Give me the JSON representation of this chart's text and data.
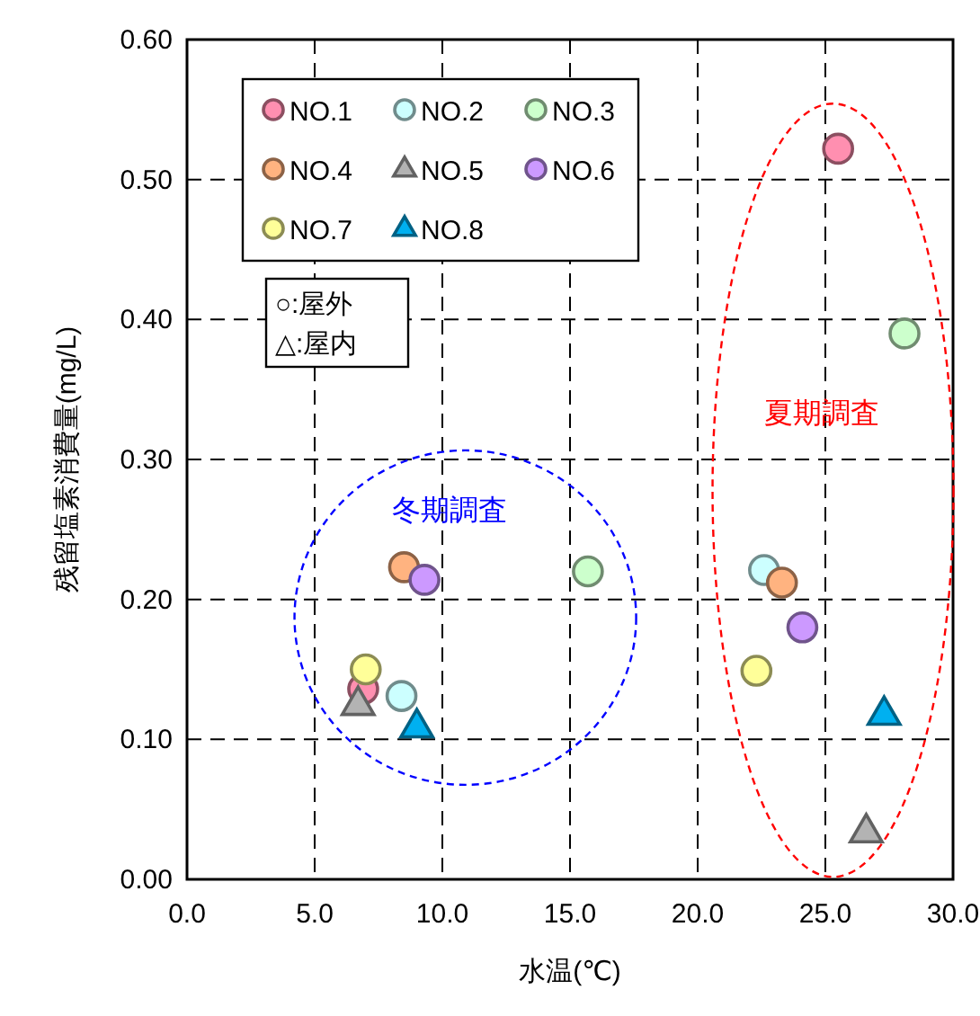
{
  "chart_data": {
    "type": "scatter",
    "xlabel": "水温(℃)",
    "ylabel": "残留塩素消費量(mg/L)",
    "xlim": [
      0,
      30
    ],
    "ylim": [
      0,
      0.6
    ],
    "xticks": [
      {
        "value": 0,
        "label": "0.0"
      },
      {
        "value": 5,
        "label": "5.0"
      },
      {
        "value": 10,
        "label": "10.0"
      },
      {
        "value": 15,
        "label": "15.0"
      },
      {
        "value": 20,
        "label": "20.0"
      },
      {
        "value": 25,
        "label": "25.0"
      },
      {
        "value": 30,
        "label": "30.0"
      }
    ],
    "yticks": [
      {
        "value": 0,
        "label": "0.00"
      },
      {
        "value": 0.1,
        "label": "0.10"
      },
      {
        "value": 0.2,
        "label": "0.20"
      },
      {
        "value": 0.3,
        "label": "0.30"
      },
      {
        "value": 0.4,
        "label": "0.40"
      },
      {
        "value": 0.5,
        "label": "0.50"
      },
      {
        "value": 0.6,
        "label": "0.60"
      }
    ],
    "grid": true,
    "legend": "top left",
    "series": [
      {
        "name": "NO.1",
        "color": "#ff8fb0",
        "marker": "circle",
        "x": [
          6.9,
          25.5
        ],
        "values": [
          0.136,
          0.522
        ]
      },
      {
        "name": "NO.2",
        "color": "#ccffff",
        "marker": "circle",
        "x": [
          8.4,
          22.6
        ],
        "values": [
          0.131,
          0.221
        ]
      },
      {
        "name": "NO.3",
        "color": "#ccffcc",
        "marker": "circle",
        "x": [
          15.7,
          28.1
        ],
        "values": [
          0.22,
          0.39
        ]
      },
      {
        "name": "NO.4",
        "color": "#ffb380",
        "marker": "circle",
        "x": [
          8.5,
          23.3
        ],
        "values": [
          0.223,
          0.212
        ]
      },
      {
        "name": "NO.5",
        "color": "#b3b3b3",
        "marker": "triangle",
        "x": [
          6.7,
          26.6
        ],
        "values": [
          0.125,
          0.034
        ]
      },
      {
        "name": "NO.6",
        "color": "#cc99ff",
        "marker": "circle",
        "x": [
          9.3,
          24.1
        ],
        "values": [
          0.214,
          0.18
        ]
      },
      {
        "name": "NO.7",
        "color": "#ffff99",
        "marker": "circle",
        "x": [
          7.0,
          22.3
        ],
        "values": [
          0.15,
          0.149
        ]
      },
      {
        "name": "NO.8",
        "color": "#00b0f0",
        "marker": "triangle",
        "x": [
          9.0,
          27.3
        ],
        "values": [
          0.109,
          0.118
        ]
      }
    ],
    "annotations": [
      "冬期調査",
      "夏期調査",
      "○:屋外",
      "△:屋内"
    ]
  }
}
